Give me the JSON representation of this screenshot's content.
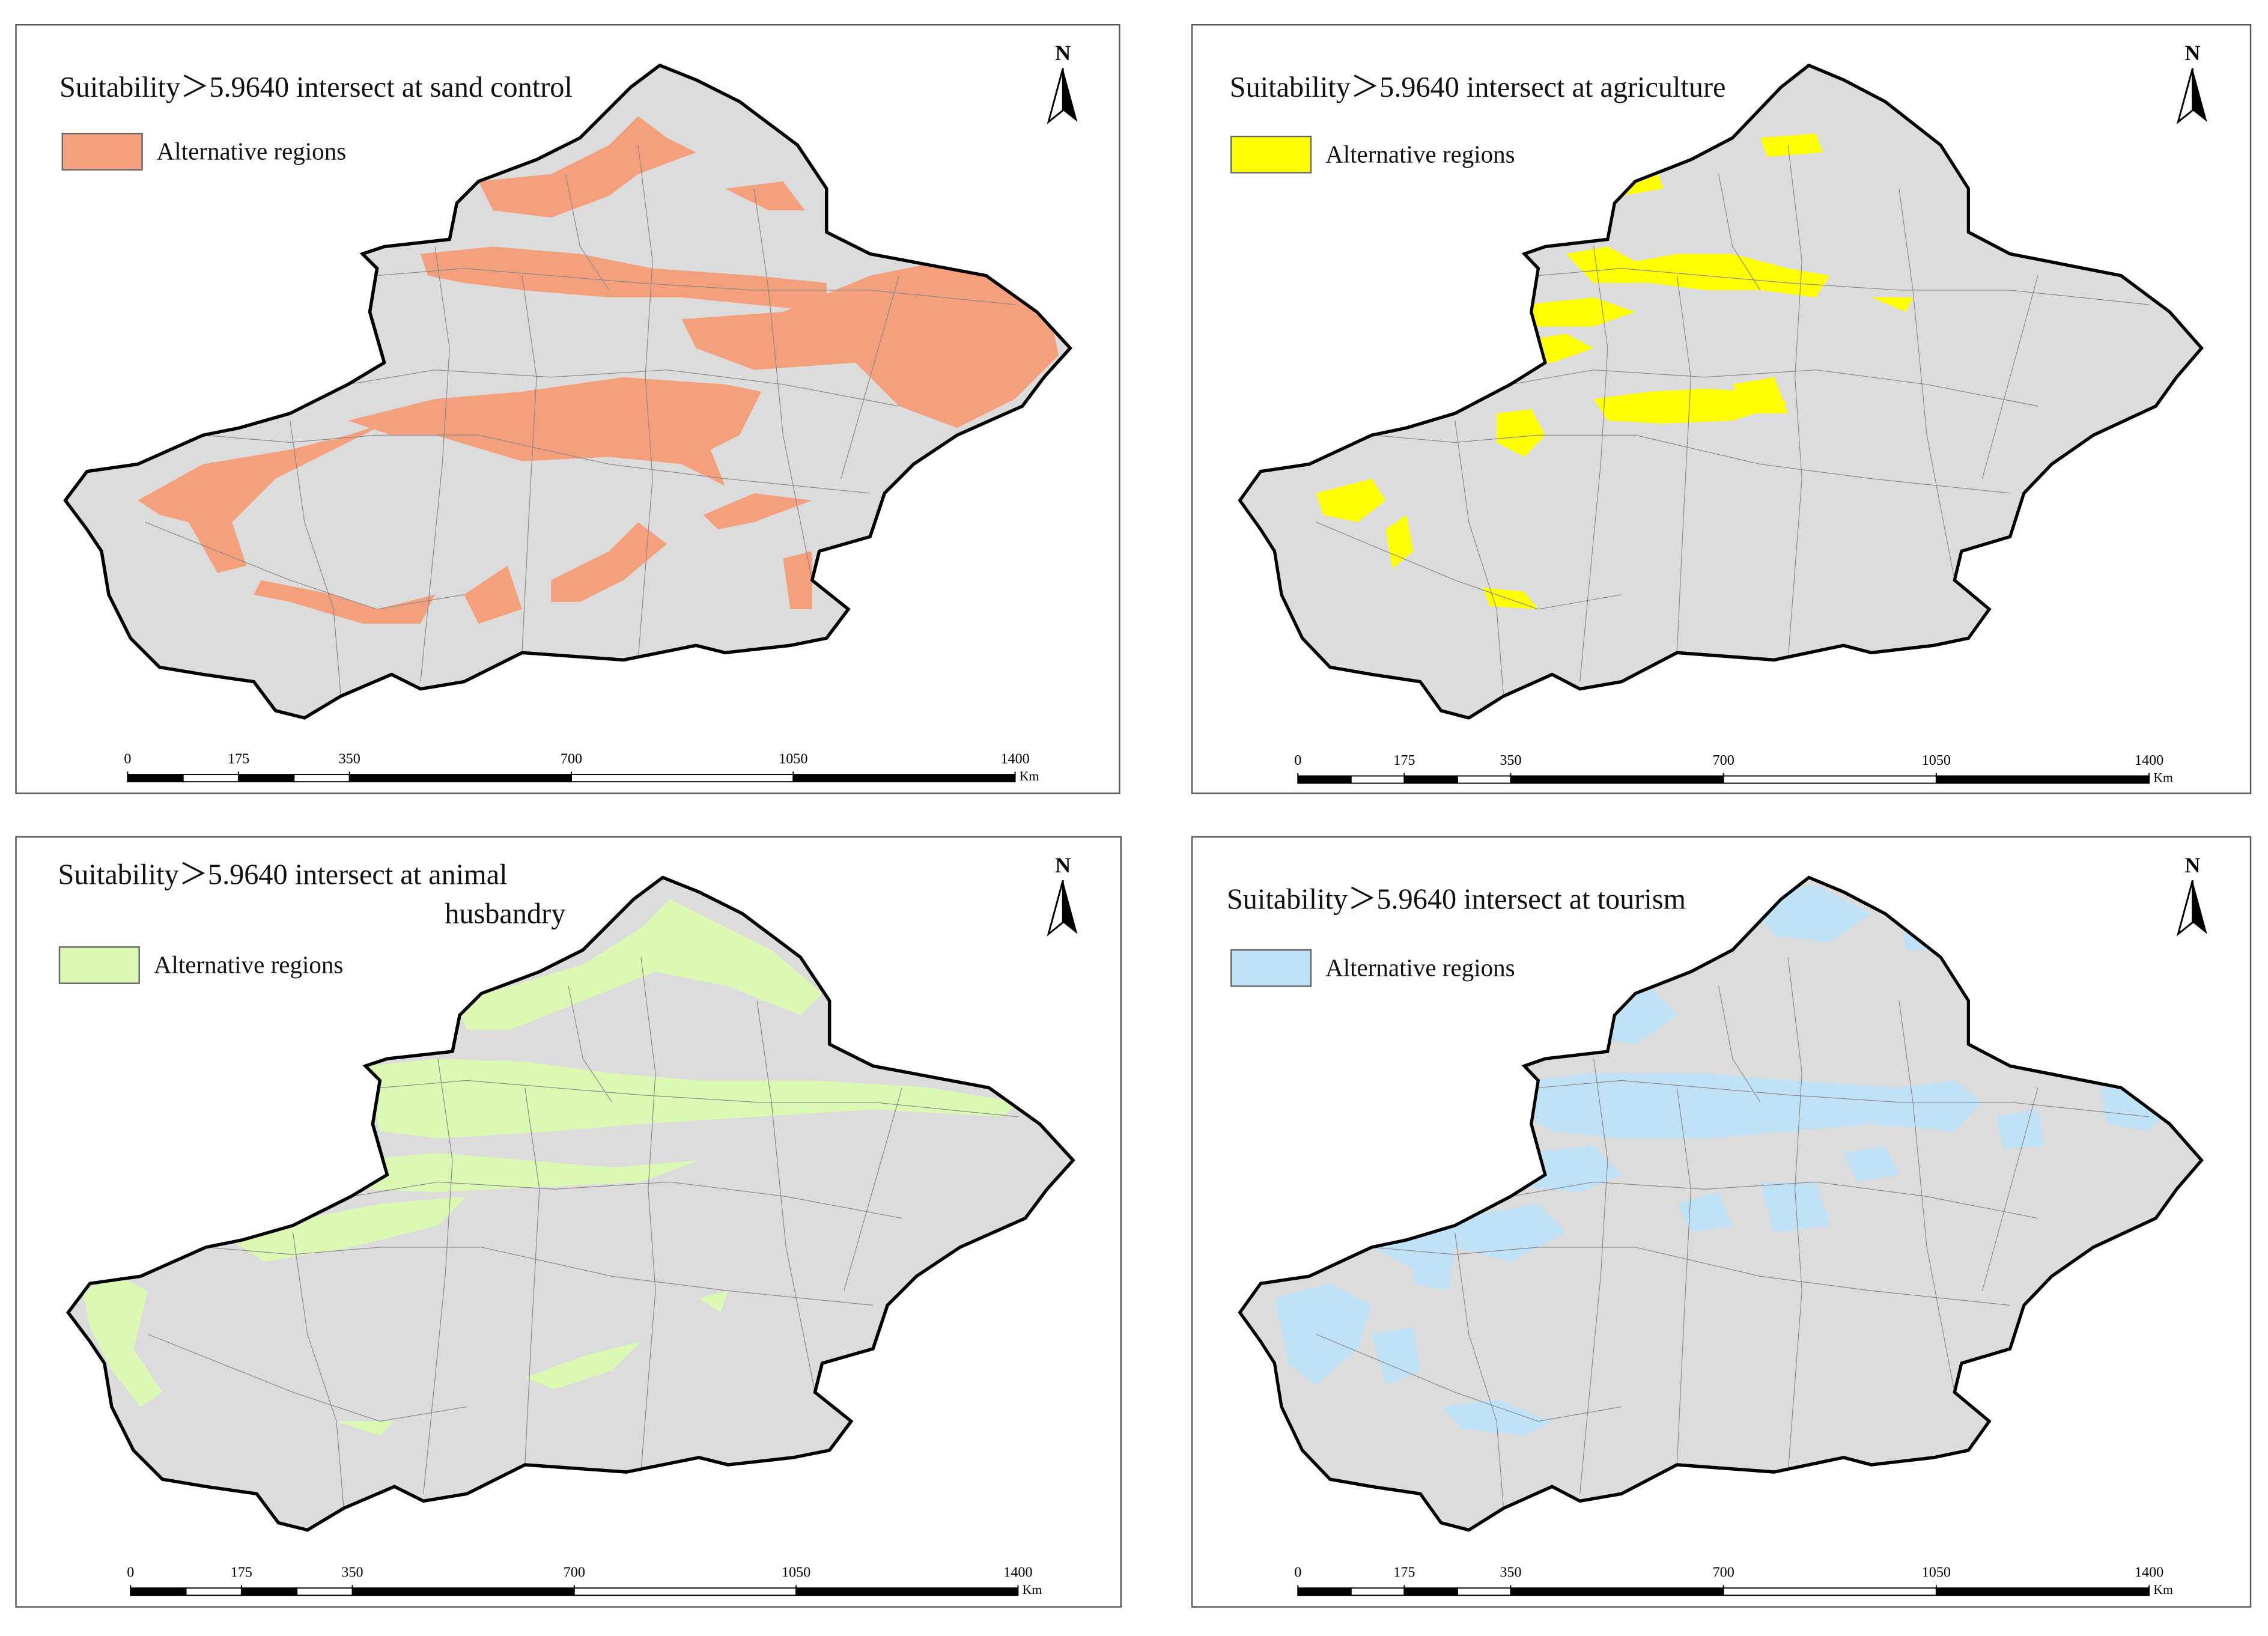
{
  "panels": [
    {
      "title_lines": [
        "Suitability＞5.9640 intersect at sand control"
      ],
      "legend": "Alternative regions",
      "color": "#f4a07c",
      "theme": "sand"
    },
    {
      "title_lines": [
        "Suitability＞5.9640 intersect at agriculture"
      ],
      "legend": "Alternative regions",
      "color": "#ffff00",
      "theme": "agri"
    },
    {
      "title_lines": [
        "Suitability＞5.9640 intersect at animal",
        "husbandry"
      ],
      "legend": "Alternative regions",
      "color": "#dcf9b4",
      "theme": "animal"
    },
    {
      "title_lines": [
        "Suitability＞5.9640 intersect at tourism"
      ],
      "legend": "Alternative regions",
      "color": "#bfe2f7",
      "theme": "tour"
    }
  ],
  "scale_bar": {
    "ticks": [
      0,
      175,
      350,
      700,
      1050,
      1400
    ],
    "unit": "Km"
  },
  "north": "N"
}
